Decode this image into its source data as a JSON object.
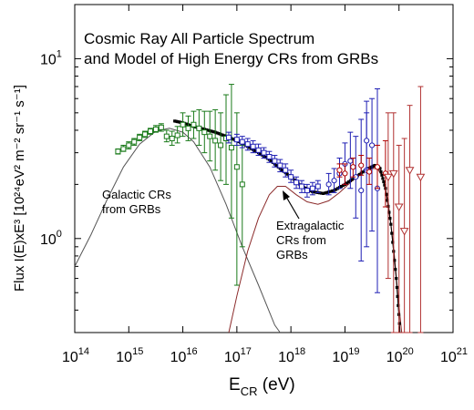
{
  "chart_data": {
    "type": "scatter",
    "title_lines": [
      "Cosmic Ray All Particle Spectrum",
      "and Model of High Energy CRs from GRBs"
    ],
    "xlabel": {
      "main": "E",
      "sub": "CR",
      "unit": " (eV)"
    },
    "ylabel": "Flux I(E)xE³ [10²⁴eV² m⁻² sr⁻¹ s⁻¹]",
    "xscale": "log",
    "yscale": "log",
    "xlim_log10": [
      14,
      21
    ],
    "ylim": [
      0.3,
      20
    ],
    "xticks": [
      {
        "exp": 14,
        "base": "10",
        "sup": "14"
      },
      {
        "exp": 15,
        "base": "10",
        "sup": "15"
      },
      {
        "exp": 16,
        "base": "10",
        "sup": "16"
      },
      {
        "exp": 17,
        "base": "10",
        "sup": "17"
      },
      {
        "exp": 18,
        "base": "10",
        "sup": "18"
      },
      {
        "exp": 19,
        "base": "10",
        "sup": "19"
      },
      {
        "exp": 20,
        "base": "10",
        "sup": "20"
      },
      {
        "exp": 21,
        "base": "10",
        "sup": "21"
      }
    ],
    "yticks": [
      {
        "value": 1,
        "base": "10",
        "sup": "0"
      },
      {
        "value": 10,
        "base": "10",
        "sup": "1"
      }
    ],
    "annotations": [
      {
        "lines": [
          "Galactic CRs",
          "from GRBs"
        ]
      },
      {
        "lines": [
          "Extragalactic",
          "CRs from",
          "GRBs"
        ]
      }
    ],
    "colors": {
      "galactic_data": "#1a7a1a",
      "mid_data": "#1f1fb4",
      "high_data": "#b00000",
      "ultra_data": "#b03030",
      "model_total": "#000000",
      "galactic_model": "#555555",
      "extragalactic_model": "#8b2a2a"
    },
    "series": [
      {
        "role": "galactic_data",
        "marker": "square",
        "points": [
          {
            "x": 14.8,
            "y": 3.05,
            "lo": 2.95,
            "hi": 3.15
          },
          {
            "x": 14.9,
            "y": 3.15,
            "lo": 3.05,
            "hi": 3.3
          },
          {
            "x": 15.0,
            "y": 3.3,
            "lo": 3.15,
            "hi": 3.45
          },
          {
            "x": 15.1,
            "y": 3.45,
            "lo": 3.3,
            "hi": 3.6
          },
          {
            "x": 15.2,
            "y": 3.65,
            "lo": 3.5,
            "hi": 3.8
          },
          {
            "x": 15.3,
            "y": 3.8,
            "lo": 3.65,
            "hi": 3.95
          },
          {
            "x": 15.4,
            "y": 3.95,
            "lo": 3.8,
            "hi": 4.1
          },
          {
            "x": 15.5,
            "y": 4.05,
            "lo": 3.9,
            "hi": 4.25
          },
          {
            "x": 15.6,
            "y": 4.15,
            "lo": 3.95,
            "hi": 4.35
          },
          {
            "x": 15.7,
            "y": 3.7,
            "lo": 3.45,
            "hi": 4.0
          },
          {
            "x": 15.8,
            "y": 3.6,
            "lo": 3.3,
            "hi": 3.95
          },
          {
            "x": 15.9,
            "y": 3.75,
            "lo": 3.4,
            "hi": 4.2
          },
          {
            "x": 16.0,
            "y": 4.3,
            "lo": 3.7,
            "hi": 5.0
          },
          {
            "x": 16.1,
            "y": 4.1,
            "lo": 3.5,
            "hi": 4.8
          },
          {
            "x": 16.2,
            "y": 4.3,
            "lo": 3.6,
            "hi": 5.1
          },
          {
            "x": 16.3,
            "y": 4.1,
            "lo": 3.3,
            "hi": 5.2
          },
          {
            "x": 16.4,
            "y": 3.9,
            "lo": 3.0,
            "hi": 5.1
          },
          {
            "x": 16.5,
            "y": 3.7,
            "lo": 2.7,
            "hi": 5.1
          },
          {
            "x": 16.6,
            "y": 3.5,
            "lo": 2.4,
            "hi": 5.2
          },
          {
            "x": 16.7,
            "y": 3.3,
            "lo": 2.1,
            "hi": 5.0
          },
          {
            "x": 16.8,
            "y": 3.6,
            "lo": 2.0,
            "hi": 6.3
          },
          {
            "x": 16.9,
            "y": 3.2,
            "lo": 1.3,
            "hi": 7.2
          },
          {
            "x": 17.0,
            "y": 2.5,
            "lo": 0.55,
            "hi": 5.0
          },
          {
            "x": 17.1,
            "y": 2.0,
            "lo": 0.9,
            "hi": 3.3
          }
        ]
      },
      {
        "role": "mid_data",
        "marker": "square",
        "points": [
          {
            "x": 16.85,
            "y": 3.65,
            "lo": 3.4,
            "hi": 3.9
          },
          {
            "x": 17.0,
            "y": 3.55,
            "lo": 3.3,
            "hi": 3.8
          },
          {
            "x": 17.1,
            "y": 3.45,
            "lo": 3.2,
            "hi": 3.7
          },
          {
            "x": 17.2,
            "y": 3.35,
            "lo": 3.1,
            "hi": 3.6
          },
          {
            "x": 17.3,
            "y": 3.25,
            "lo": 3.0,
            "hi": 3.5
          },
          {
            "x": 17.4,
            "y": 3.1,
            "lo": 2.9,
            "hi": 3.35
          },
          {
            "x": 17.5,
            "y": 3.0,
            "lo": 2.8,
            "hi": 3.2
          },
          {
            "x": 17.6,
            "y": 2.85,
            "lo": 2.65,
            "hi": 3.05
          },
          {
            "x": 17.7,
            "y": 2.7,
            "lo": 2.5,
            "hi": 2.9
          },
          {
            "x": 17.8,
            "y": 2.55,
            "lo": 2.35,
            "hi": 2.75
          },
          {
            "x": 17.9,
            "y": 2.4,
            "lo": 2.2,
            "hi": 2.6
          },
          {
            "x": 18.0,
            "y": 2.2,
            "lo": 2.05,
            "hi": 2.4
          },
          {
            "x": 18.1,
            "y": 2.05,
            "lo": 1.9,
            "hi": 2.2
          },
          {
            "x": 18.2,
            "y": 1.95,
            "lo": 1.8,
            "hi": 2.1
          },
          {
            "x": 18.3,
            "y": 1.85,
            "lo": 1.7,
            "hi": 2.0
          },
          {
            "x": 18.4,
            "y": 1.9,
            "lo": 1.75,
            "hi": 2.05
          },
          {
            "x": 18.5,
            "y": 1.95,
            "lo": 1.8,
            "hi": 2.1
          }
        ]
      },
      {
        "role": "mid_data",
        "marker": "circle",
        "points": [
          {
            "x": 18.7,
            "y": 2.0,
            "lo": 1.75,
            "hi": 2.3
          },
          {
            "x": 18.8,
            "y": 2.1,
            "lo": 1.8,
            "hi": 2.45
          },
          {
            "x": 18.9,
            "y": 2.3,
            "lo": 1.9,
            "hi": 2.8
          },
          {
            "x": 19.0,
            "y": 2.6,
            "lo": 2.0,
            "hi": 3.4
          },
          {
            "x": 19.1,
            "y": 2.7,
            "lo": 1.9,
            "hi": 3.9
          },
          {
            "x": 19.2,
            "y": 2.2,
            "lo": 1.3,
            "hi": 3.7
          },
          {
            "x": 19.3,
            "y": 1.85,
            "lo": 0.75,
            "hi": 4.6
          },
          {
            "x": 19.4,
            "y": 2.4,
            "lo": 0.9,
            "hi": 5.8
          },
          {
            "x": 19.5,
            "y": 3.3,
            "lo": 1.1,
            "hi": 6.0
          },
          {
            "x": 19.6,
            "y": 1.9,
            "lo": 0.5,
            "hi": 6.8
          },
          {
            "x": 19.4,
            "y": 3.5,
            "lo": 2.4,
            "hi": 5.0
          }
        ]
      },
      {
        "role": "high_data",
        "marker": "circle",
        "points": [
          {
            "x": 18.9,
            "y": 2.4,
            "lo": 2.2,
            "hi": 2.6
          },
          {
            "x": 19.0,
            "y": 2.3,
            "lo": 2.0,
            "hi": 2.6
          },
          {
            "x": 19.15,
            "y": 2.5,
            "lo": 2.2,
            "hi": 2.8
          },
          {
            "x": 19.3,
            "y": 2.55,
            "lo": 2.25,
            "hi": 2.9
          },
          {
            "x": 19.45,
            "y": 2.35,
            "lo": 2.0,
            "hi": 2.8
          },
          {
            "x": 19.6,
            "y": 2.5,
            "lo": 1.9,
            "hi": 3.3
          },
          {
            "x": 19.75,
            "y": 2.3,
            "lo": 1.5,
            "hi": 3.5
          }
        ]
      },
      {
        "role": "ultra_data",
        "marker": "triangle-down",
        "points": [
          {
            "x": 19.8,
            "y": 2.2,
            "lo": 0.6,
            "hi": 5.0
          },
          {
            "x": 19.9,
            "y": 2.3,
            "lo": 0.3,
            "hi": 5.0
          },
          {
            "x": 20.0,
            "y": 1.5,
            "lo": 0.3,
            "hi": 3.3
          },
          {
            "x": 20.1,
            "y": 1.1,
            "lo": 0.3,
            "hi": 3.6
          },
          {
            "x": 20.2,
            "y": 2.4,
            "lo": 0.3,
            "hi": 5.5
          },
          {
            "x": 20.4,
            "y": 2.2,
            "lo": 0.3,
            "hi": 7.0
          }
        ]
      }
    ],
    "models": {
      "total": [
        [
          15.85,
          4.5
        ],
        [
          16.0,
          4.4
        ],
        [
          16.2,
          4.2
        ],
        [
          16.4,
          4.05
        ],
        [
          16.6,
          3.9
        ],
        [
          16.8,
          3.7
        ],
        [
          17.0,
          3.5
        ],
        [
          17.2,
          3.25
        ],
        [
          17.4,
          3.0
        ],
        [
          17.6,
          2.75
        ],
        [
          17.8,
          2.45
        ],
        [
          18.0,
          2.2
        ],
        [
          18.2,
          1.95
        ],
        [
          18.4,
          1.82
        ],
        [
          18.6,
          1.78
        ],
        [
          18.8,
          1.85
        ],
        [
          19.0,
          2.0
        ],
        [
          19.2,
          2.2
        ],
        [
          19.4,
          2.42
        ],
        [
          19.55,
          2.55
        ],
        [
          19.65,
          2.45
        ],
        [
          19.75,
          1.9
        ],
        [
          19.85,
          1.2
        ],
        [
          19.95,
          0.6
        ],
        [
          20.02,
          0.3
        ]
      ],
      "galactic": [
        [
          14.0,
          0.7
        ],
        [
          14.3,
          1.05
        ],
        [
          14.6,
          1.65
        ],
        [
          14.9,
          2.5
        ],
        [
          15.2,
          3.35
        ],
        [
          15.5,
          3.95
        ],
        [
          15.75,
          4.1
        ],
        [
          16.0,
          3.9
        ],
        [
          16.2,
          3.45
        ],
        [
          16.5,
          2.5
        ],
        [
          16.8,
          1.55
        ],
        [
          17.1,
          0.9
        ],
        [
          17.4,
          0.55
        ],
        [
          17.7,
          0.33
        ],
        [
          17.8,
          0.3
        ]
      ],
      "extragalactic": [
        [
          16.85,
          0.3
        ],
        [
          17.0,
          0.48
        ],
        [
          17.2,
          0.85
        ],
        [
          17.4,
          1.3
        ],
        [
          17.6,
          1.75
        ],
        [
          17.75,
          1.95
        ],
        [
          17.9,
          1.95
        ],
        [
          18.1,
          1.75
        ],
        [
          18.3,
          1.6
        ],
        [
          18.5,
          1.55
        ],
        [
          18.7,
          1.62
        ],
        [
          18.9,
          1.8
        ],
        [
          19.1,
          2.05
        ],
        [
          19.3,
          2.3
        ],
        [
          19.5,
          2.45
        ],
        [
          19.6,
          2.45
        ],
        [
          19.7,
          2.2
        ],
        [
          19.8,
          1.6
        ],
        [
          19.9,
          0.9
        ],
        [
          20.0,
          0.42
        ],
        [
          20.05,
          0.3
        ]
      ]
    }
  }
}
